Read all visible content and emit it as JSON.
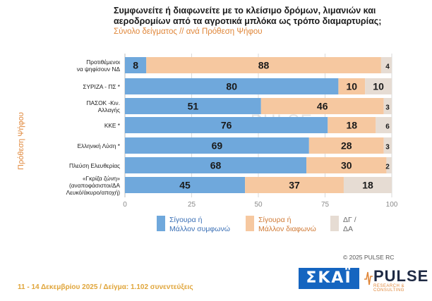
{
  "title": "Συμφωνείτε ή διαφωνείτε με το κλείσιμο δρόμων, λιμανιών και αεροδρομίων από τα αγροτικά μπλόκα ως τρόπο διαμαρτυρίας;",
  "subtitle": "Σύνολο δείγματος // ανά Πρόθεση Ψήφου",
  "vertical_label": "Πρόθεση Ψήφου",
  "watermark": "PULSE",
  "copyright": "© 2025 PULSE RC",
  "footer": "11 - 14 Δεκεμβρίου 2025  /  Δείγμα:  1.102 συνεντεύξεις",
  "logos": {
    "skai": "ΣΚΑΪ",
    "pulse": "PULSE",
    "pulse_sub": "RESEARCH & CONSULTING"
  },
  "colors": {
    "agree": "#6fa8dc",
    "disagree": "#f6c8a0",
    "dk": "#e6dcd3"
  },
  "legend": {
    "agree": [
      "Σίγουρα ή",
      "Μάλλον συμφωνώ"
    ],
    "disagree": [
      "Σίγουρα ή",
      "Μάλλον διαφωνώ"
    ],
    "dk": [
      "ΔΓ /",
      "ΔΑ"
    ]
  },
  "chart_data": {
    "type": "bar",
    "orientation": "horizontal",
    "stacked": true,
    "categories": [
      [
        "Προτιθέμενοι",
        "να ψηφίσουν ΝΔ"
      ],
      [
        "ΣΥΡΙΖΑ - ΠΣ *"
      ],
      [
        "ΠΑΣΟΚ -Κιν.",
        "Αλλαγής"
      ],
      [
        "ΚΚΕ *"
      ],
      [
        "Ελληνική Λύση *"
      ],
      [
        "Πλεύση Ελευθερίας"
      ],
      [
        "«Γκρίζα ζώνη»",
        "(αναποφάσιστοι/ΔΑ",
        "Λευκό/άκυρο/αποχή)"
      ]
    ],
    "series": [
      {
        "name": "Σίγουρα ή Μάλλον συμφωνώ",
        "values": [
          8,
          80,
          51,
          76,
          69,
          68,
          45
        ]
      },
      {
        "name": "Σίγουρα ή Μάλλον διαφωνώ",
        "values": [
          88,
          10,
          46,
          18,
          28,
          30,
          37
        ]
      },
      {
        "name": "ΔΓ / ΔΑ",
        "values": [
          4,
          10,
          3,
          6,
          3,
          2,
          18
        ]
      }
    ],
    "xlim": [
      0,
      100
    ],
    "xticks": [
      0,
      25,
      50,
      75,
      100
    ],
    "grid": true
  }
}
